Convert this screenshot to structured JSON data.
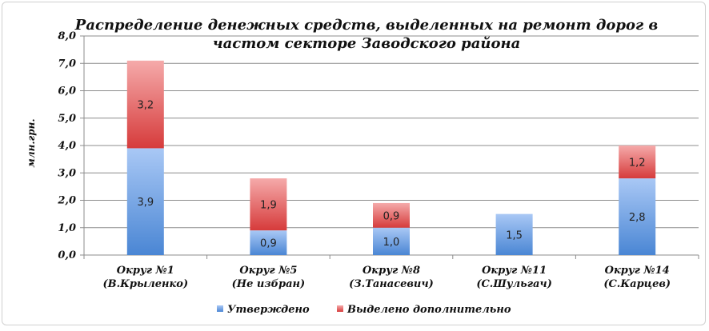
{
  "chart_data": {
    "type": "bar",
    "stacked": true,
    "title_lines": [
      "Распределение денежных средств, выделенных на ремонт дорог в",
      "частом секторе Заводского района"
    ],
    "ylabel": "млн.грн.",
    "ylim": [
      0,
      8
    ],
    "ytick_labels": [
      "0,0",
      "1,0",
      "2,0",
      "3,0",
      "4,0",
      "5,0",
      "6,0",
      "7,0",
      "8,0"
    ],
    "categories": [
      [
        "Округ №1",
        "(В.Крыленко)"
      ],
      [
        "Округ №5",
        "(Не избран)"
      ],
      [
        "Округ №8",
        "(З.Танасевич)"
      ],
      [
        "Округ №11",
        "(С.Шульгач)"
      ],
      [
        "Округ №14",
        "(С.Карцев)"
      ]
    ],
    "series": [
      {
        "name": "Утверждено",
        "values": [
          3.9,
          0.9,
          1.0,
          1.5,
          2.8
        ],
        "labels": [
          "3,9",
          "0,9",
          "1,0",
          "1,5",
          "2,8"
        ],
        "color_top": "#a9c8f5",
        "color_bottom": "#4a86d4"
      },
      {
        "name": "Выделено дополнительно",
        "values": [
          3.2,
          1.9,
          0.9,
          0,
          1.2
        ],
        "labels": [
          "3,2",
          "1,9",
          "0,9",
          "",
          "1,2"
        ],
        "color_top": "#f5aaaa",
        "color_bottom": "#d63b3b"
      }
    ],
    "legend_position": "bottom",
    "grid": true
  }
}
